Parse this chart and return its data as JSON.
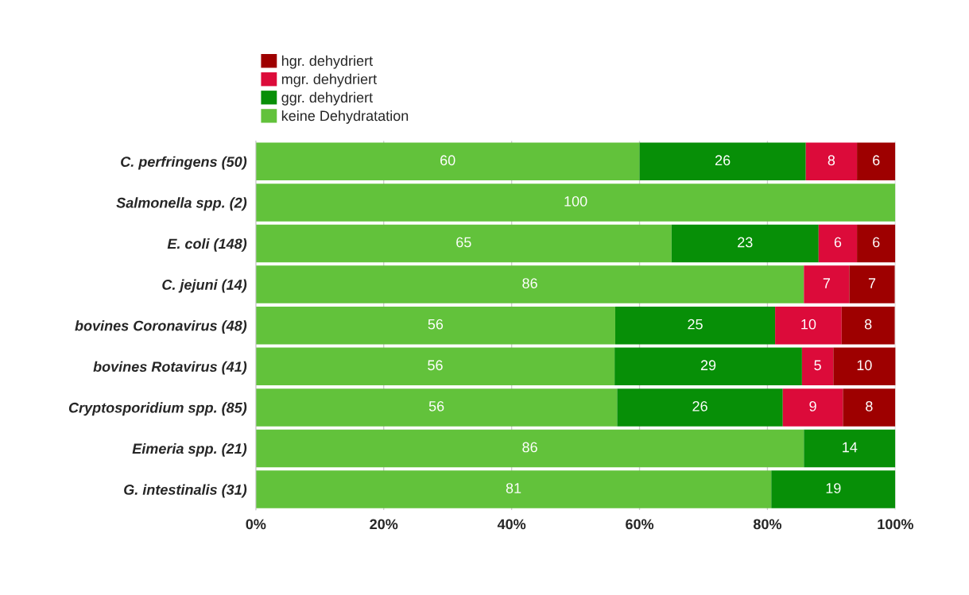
{
  "chart_data": {
    "type": "bar",
    "orientation": "horizontal",
    "stacked": true,
    "categories": [
      "C. perfringens (50)",
      "Salmonella spp. (2)",
      "E. coli (148)",
      "C. jejuni (14)",
      "bovines Coronavirus (48)",
      "bovines Rotavirus (41)",
      "Cryptosporidium spp. (85)",
      "Eimeria spp. (21)",
      "G. intestinalis (31)"
    ],
    "series": [
      {
        "name": "keine Dehydratation",
        "color": "#62c23b",
        "values": [
          60,
          100,
          65,
          85.7,
          56.2,
          56.1,
          56.5,
          85.7,
          80.6
        ],
        "value_labels": [
          "60",
          "100",
          "65",
          "86",
          "56",
          "56",
          "56",
          "86",
          "81"
        ]
      },
      {
        "name": "ggr. dehydriert",
        "color": "#078f07",
        "values": [
          26,
          null,
          23,
          null,
          25.0,
          29.3,
          25.9,
          14.3,
          19.4
        ],
        "value_labels": [
          "26",
          null,
          "23",
          null,
          "25",
          "29",
          "26",
          "14",
          "19"
        ]
      },
      {
        "name": "mgr. dehydriert",
        "color": "#dc0b3a",
        "values": [
          8,
          null,
          6,
          7.1,
          10.4,
          4.9,
          9.4,
          null,
          null
        ],
        "value_labels": [
          "8",
          null,
          "6",
          "7",
          "10",
          "5",
          "9",
          null,
          null
        ]
      },
      {
        "name": "hgr. dehydriert",
        "color": "#9e0000",
        "values": [
          6,
          null,
          6,
          7.1,
          8.3,
          9.8,
          8.2,
          null,
          null
        ],
        "value_labels": [
          "6",
          null,
          "6",
          "7",
          "8",
          "10",
          "8",
          null,
          null
        ]
      }
    ],
    "xlim": [
      0,
      100
    ],
    "xticks": [
      {
        "value": 0,
        "label": "0%"
      },
      {
        "value": 20,
        "label": "20%"
      },
      {
        "value": 40,
        "label": "40%"
      },
      {
        "value": 60,
        "label": "60%"
      },
      {
        "value": 80,
        "label": "80%"
      },
      {
        "value": 100,
        "label": "100%"
      }
    ],
    "grid": "x",
    "legend": "top left"
  }
}
